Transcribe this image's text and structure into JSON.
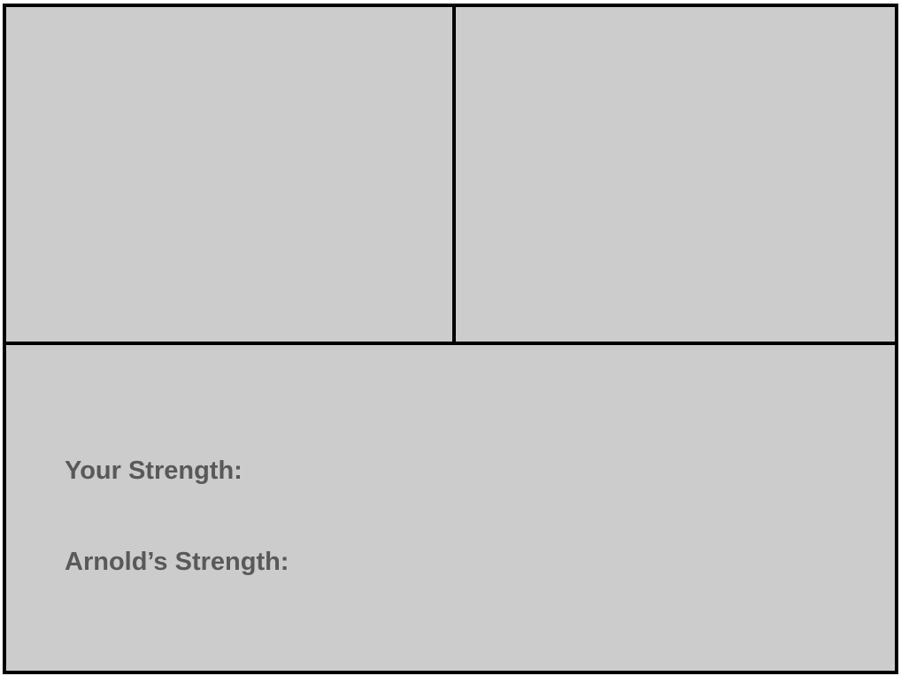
{
  "stats": {
    "your_strength_label": "Your Strength:",
    "arnold_strength_label": "Arnold’s Strength:"
  },
  "colors": {
    "background": "#cccccc",
    "border": "#000000",
    "text": "#595959"
  }
}
